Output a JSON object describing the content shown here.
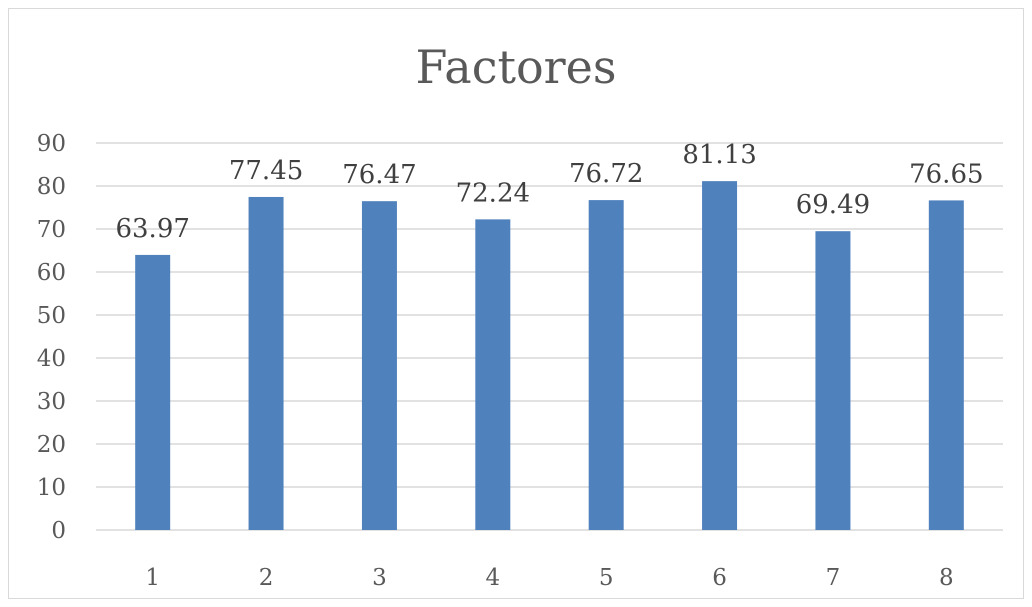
{
  "chart_data": {
    "type": "bar",
    "title": "Factores",
    "xlabel": "",
    "ylabel": "",
    "categories": [
      "1",
      "2",
      "3",
      "4",
      "5",
      "6",
      "7",
      "8"
    ],
    "values": [
      63.97,
      77.45,
      76.47,
      72.24,
      76.72,
      81.13,
      69.49,
      76.65
    ],
    "value_labels": [
      "63.97",
      "77.45",
      "76.47",
      "72.24",
      "76.72",
      "81.13",
      "69.49",
      "76.65"
    ],
    "ylim": [
      0,
      90
    ],
    "yticks": [
      "0",
      "10",
      "20",
      "30",
      "40",
      "50",
      "60",
      "70",
      "80",
      "90"
    ],
    "grid": true,
    "legend": "none",
    "colors": {
      "bar": "#4f81bd",
      "grid": "#d9d9d9",
      "text": "#595959"
    }
  }
}
